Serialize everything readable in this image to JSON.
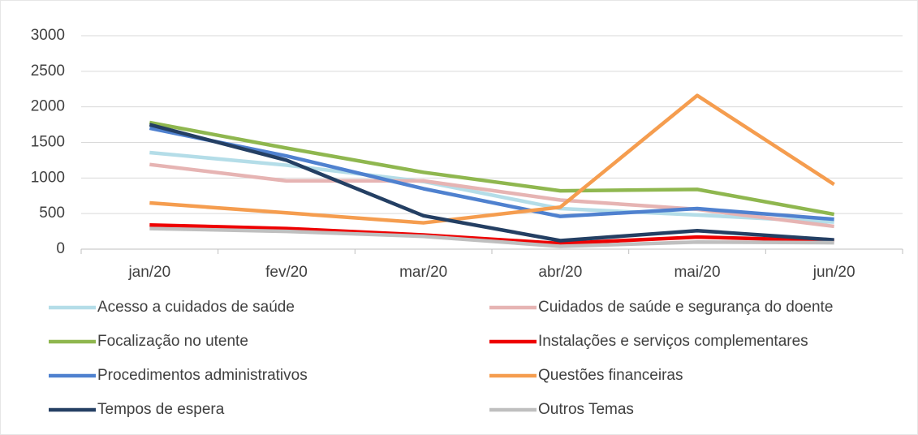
{
  "chart_data": {
    "type": "line",
    "categories": [
      "jan/20",
      "fev/20",
      "mar/20",
      "abr/20",
      "mai/20",
      "jun/20"
    ],
    "series": [
      {
        "name": "Acesso a cuidados de saúde",
        "color": "#b4dde8",
        "values": [
          1357,
          1180,
          950,
          570,
          480,
          380
        ]
      },
      {
        "name": "Cuidados de saúde e segurança do doente",
        "color": "#e6b4b3",
        "values": [
          1190,
          960,
          960,
          690,
          560,
          320
        ]
      },
      {
        "name": "Focalização no utente",
        "color": "#8fb74f",
        "values": [
          1780,
          1420,
          1080,
          820,
          840,
          490
        ]
      },
      {
        "name": "Instalações e serviços complementares",
        "color": "#ee0000",
        "values": [
          340,
          290,
          200,
          80,
          170,
          120
        ]
      },
      {
        "name": "Procedimentos administrativos",
        "color": "#4f81cf",
        "values": [
          1700,
          1310,
          850,
          460,
          570,
          420
        ]
      },
      {
        "name": "Questões financeiras",
        "color": "#f59d4f",
        "values": [
          650,
          510,
          370,
          590,
          2160,
          910
        ]
      },
      {
        "name": "Tempos de espera",
        "color": "#243f63",
        "values": [
          1750,
          1250,
          470,
          120,
          260,
          130
        ]
      },
      {
        "name": "Outros Temas",
        "color": "#bfbfbf",
        "values": [
          290,
          250,
          180,
          40,
          100,
          90
        ]
      }
    ],
    "ylim": [
      0,
      3000
    ],
    "yticks": [
      0,
      500,
      1000,
      1500,
      2000,
      2500,
      3000
    ],
    "grid": true,
    "legend": "bottom"
  }
}
